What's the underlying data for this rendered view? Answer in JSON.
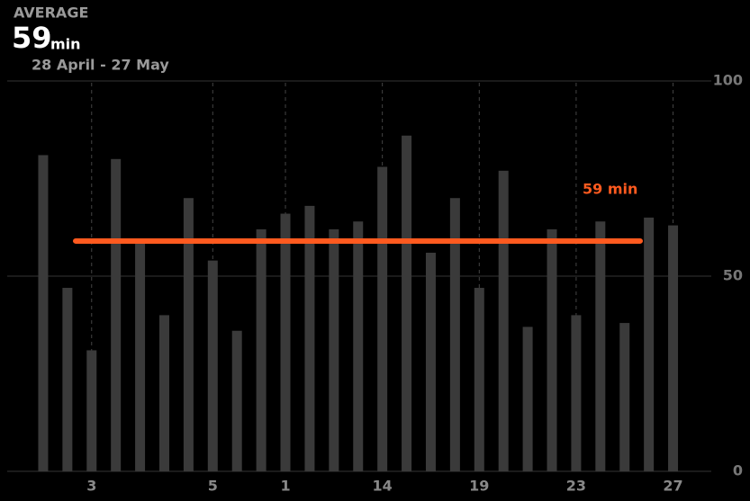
{
  "header": {
    "title": "AVERAGE",
    "value": "59",
    "unit": "min",
    "range": "28 April - 27 May"
  },
  "chart_data": {
    "type": "bar",
    "categories": [
      null,
      null,
      "3",
      null,
      null,
      null,
      null,
      "5",
      null,
      null,
      "1",
      null,
      null,
      null,
      "14",
      null,
      null,
      null,
      "19",
      null,
      null,
      null,
      "23",
      null,
      null,
      null,
      "27"
    ],
    "values": [
      81,
      47,
      31,
      80,
      59,
      40,
      70,
      54,
      36,
      62,
      66,
      68,
      62,
      64,
      78,
      86,
      56,
      70,
      47,
      77,
      37,
      62,
      40,
      64,
      38,
      65,
      63
    ],
    "color": "#3a3a3a",
    "ylim": [
      0,
      100
    ],
    "yticks": [
      0,
      50,
      100
    ],
    "grid": true,
    "average": {
      "value": 59,
      "label": "59 min",
      "color": "#ff5a1f"
    }
  }
}
